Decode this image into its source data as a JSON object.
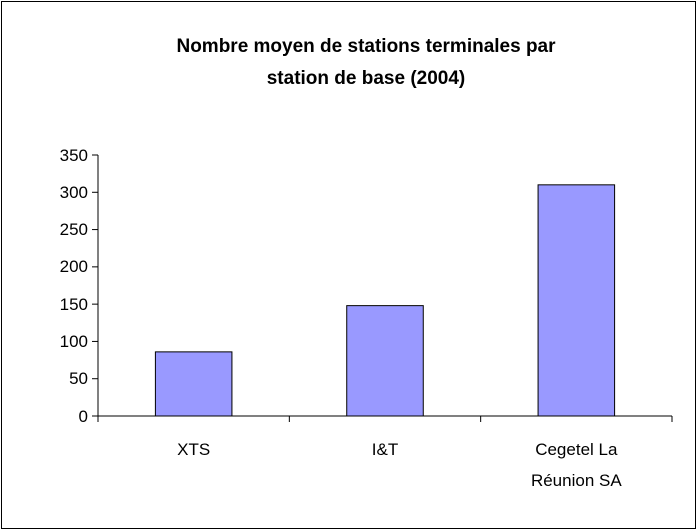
{
  "chart_data": {
    "type": "bar",
    "title": "Nombre moyen de stations terminales par station de base (2004)",
    "categories": [
      "XTS",
      "I&T",
      "Cegetel La Réunion SA"
    ],
    "values": [
      86,
      148,
      310
    ],
    "color": "#9999ff",
    "ylim": [
      0,
      350
    ],
    "yticks": [
      0,
      50,
      100,
      150,
      200,
      250,
      300,
      350
    ],
    "grid": false
  }
}
